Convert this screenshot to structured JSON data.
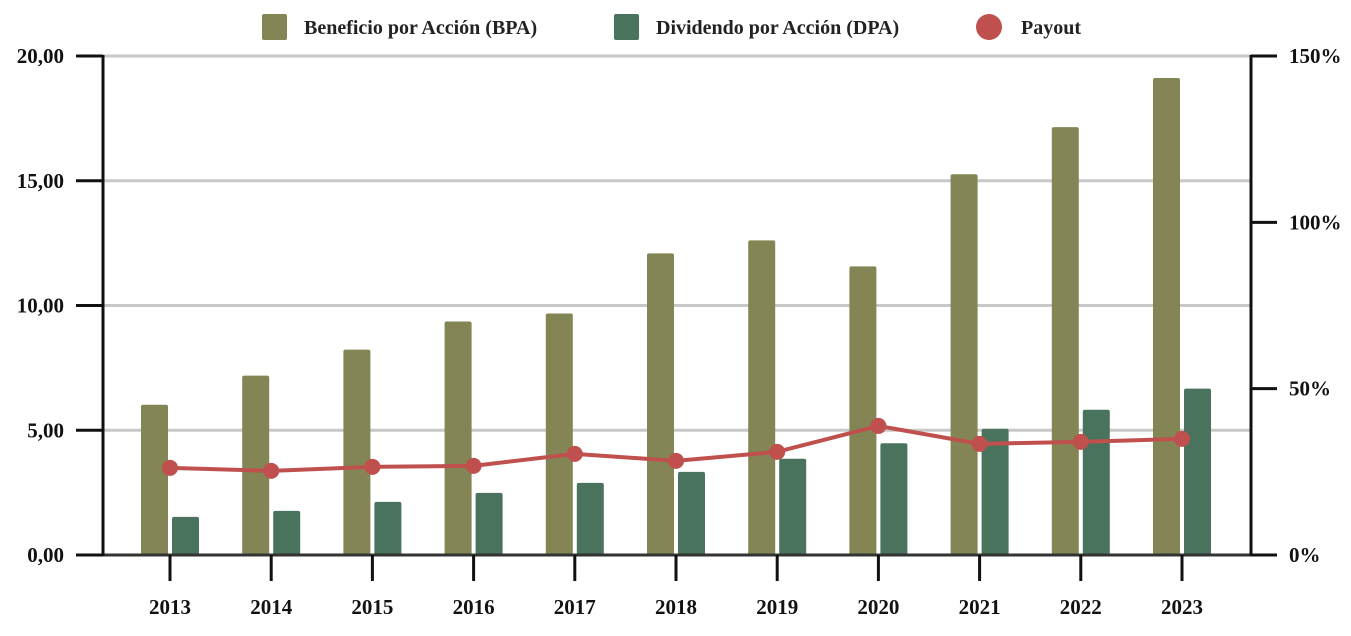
{
  "chart_data": {
    "type": "bar",
    "title": "",
    "xlabel": "",
    "ylabel": "",
    "y2label": "",
    "categories": [
      "2013",
      "2014",
      "2015",
      "2016",
      "2017",
      "2018",
      "2019",
      "2020",
      "2021",
      "2022",
      "2023"
    ],
    "series": [
      {
        "name": "Beneficio por Acción (BPA)",
        "type": "bar",
        "axis": "left",
        "color": "#838654",
        "values": [
          6.02,
          7.19,
          8.23,
          9.36,
          9.68,
          12.09,
          12.61,
          11.57,
          15.26,
          17.15,
          19.12
        ]
      },
      {
        "name": "Dividendo por Acción (DPA)",
        "type": "bar",
        "axis": "left",
        "color": "#4a735e",
        "values": [
          1.53,
          1.77,
          2.13,
          2.49,
          2.89,
          3.33,
          3.86,
          4.48,
          5.06,
          5.82,
          6.67
        ]
      },
      {
        "name": "Payout",
        "type": "line",
        "axis": "right",
        "unit": "%",
        "color": "#c0504d",
        "values": [
          26.2,
          25.3,
          26.5,
          26.8,
          30.4,
          28.3,
          31.0,
          38.8,
          33.4,
          34.0,
          34.9
        ]
      }
    ],
    "ylim": [
      0,
      20
    ],
    "y2lim": [
      0,
      150
    ],
    "yticks": [
      0,
      5,
      10,
      15,
      20
    ],
    "ytick_labels": [
      "0,00",
      "5,00",
      "10,00",
      "15,00",
      "20,00"
    ],
    "y2ticks": [
      0,
      50,
      100,
      150
    ],
    "y2tick_labels": [
      "0%",
      "50%",
      "100%",
      "150%"
    ],
    "grid": true,
    "legend": {
      "position": "top-center",
      "entries": [
        {
          "label": "Beneficio por Acción (BPA)",
          "marker": "square",
          "color": "#838654"
        },
        {
          "label": "Dividendo por Acción (DPA)",
          "marker": "square",
          "color": "#4a735e"
        },
        {
          "label": "Payout",
          "marker": "circle",
          "color": "#c0504d"
        }
      ]
    },
    "colors": {
      "grid": "#c8c8c8",
      "axis": "#111111",
      "baseline": "#333333"
    }
  }
}
